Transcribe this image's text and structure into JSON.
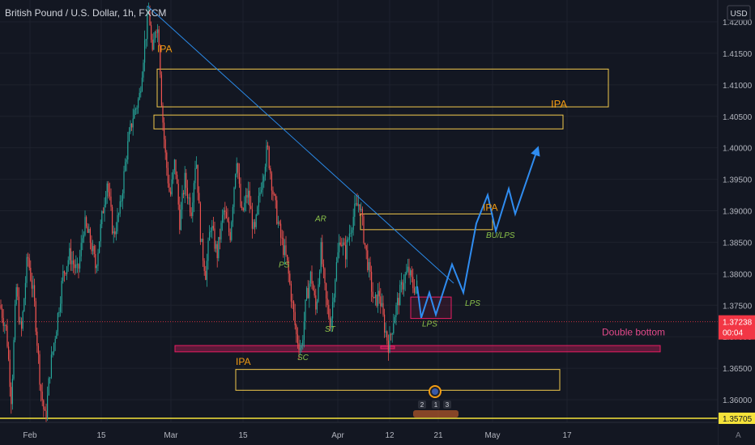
{
  "chart_data": {
    "type": "candlestick",
    "title": "British Pound / U.S. Dollar, 1h, FXCM",
    "currency": "USD",
    "colors": {
      "background": "#131722",
      "grid": "#1e222d",
      "up": "#26a69a",
      "down": "#ef5350",
      "trendline": "#2a89e6",
      "projection": "#2f8cf0",
      "zone_yellow": "#f2c94c",
      "zone_pink": "#e91e63",
      "annotation_green": "#8bc34a",
      "annotation_orange": "#f39c12",
      "double_bottom": "#e34a8a",
      "price_tag": "#f23645",
      "price_tag_yellow": "#f6e33a"
    },
    "y_ticks": [
      "1.42000",
      "1.41500",
      "1.41000",
      "1.40500",
      "1.40000",
      "1.39500",
      "1.39000",
      "1.38500",
      "1.38000",
      "1.37500",
      "1.37000",
      "1.36500",
      "1.36000"
    ],
    "ylim": [
      1.3562,
      1.424
    ],
    "x_ticks": [
      "Feb",
      "15",
      "Mar",
      "15",
      "Apr",
      "12",
      "21",
      "May",
      "17"
    ],
    "current_price": "1.37238",
    "countdown": "00:04",
    "bottom_price": "1.35705",
    "price_path": [
      [
        "Feb",
        1.375
      ],
      [
        8,
        1.371
      ],
      [
        14,
        1.36
      ],
      [
        20,
        1.378
      ],
      [
        26,
        1.37
      ],
      [
        34,
        1.383
      ],
      [
        42,
        1.376
      ],
      [
        50,
        1.362
      ],
      [
        56,
        1.3566
      ],
      [
        62,
        1.365
      ],
      [
        70,
        1.372
      ],
      [
        78,
        1.38
      ],
      [
        86,
        1.383
      ],
      [
        96,
        1.38
      ],
      [
        104,
        1.388
      ],
      [
        112,
        1.385
      ],
      [
        118,
        1.381
      ],
      [
        124,
        1.387
      ],
      [
        132,
        1.395
      ],
      [
        140,
        1.386
      ],
      [
        148,
        1.39
      ],
      [
        156,
        1.399
      ],
      [
        164,
        1.405
      ],
      [
        172,
        1.408
      ],
      [
        178,
        1.416
      ],
      [
        184,
        1.422
      ],
      [
        188,
        1.414
      ],
      [
        192,
        1.42
      ],
      [
        196,
        1.418
      ],
      [
        200,
        1.406
      ],
      [
        204,
        1.399
      ],
      [
        210,
        1.392
      ],
      [
        216,
        1.398
      ],
      [
        222,
        1.388
      ],
      [
        228,
        1.395
      ],
      [
        236,
        1.39
      ],
      [
        242,
        1.399
      ],
      [
        248,
        1.385
      ],
      [
        254,
        1.38
      ],
      [
        260,
        1.388
      ],
      [
        268,
        1.383
      ],
      [
        276,
        1.39
      ],
      [
        284,
        1.386
      ],
      [
        292,
        1.399
      ],
      [
        298,
        1.389
      ],
      [
        306,
        1.393
      ],
      [
        314,
        1.386
      ],
      [
        322,
        1.394
      ],
      [
        330,
        1.4
      ],
      [
        338,
        1.392
      ],
      [
        346,
        1.386
      ],
      [
        354,
        1.382
      ],
      [
        360,
        1.376
      ],
      [
        366,
        1.37
      ],
      [
        372,
        1.368
      ],
      [
        378,
        1.376
      ],
      [
        384,
        1.38
      ],
      [
        390,
        1.374
      ],
      [
        396,
        1.384
      ],
      [
        402,
        1.376
      ],
      [
        408,
        1.372
      ],
      [
        414,
        1.38
      ],
      [
        420,
        1.386
      ],
      [
        426,
        1.383
      ],
      [
        432,
        1.387
      ],
      [
        438,
        1.39
      ],
      [
        444,
        1.3915
      ],
      [
        450,
        1.385
      ],
      [
        456,
        1.38
      ],
      [
        462,
        1.375
      ],
      [
        468,
        1.377
      ],
      [
        474,
        1.372
      ],
      [
        480,
        1.3685
      ],
      [
        486,
        1.373
      ],
      [
        492,
        1.376
      ],
      [
        498,
        1.379
      ],
      [
        504,
        1.3805
      ],
      [
        510,
        1.378
      ],
      [
        515,
        1.378
      ]
    ],
    "trendline": {
      "from": [
        182,
        1.4225
      ],
      "to": [
        560,
        1.3785
      ]
    },
    "projection_path": [
      [
        515,
        1.378
      ],
      [
        520,
        1.373
      ],
      [
        530,
        1.377
      ],
      [
        538,
        1.3735
      ],
      [
        548,
        1.3775
      ],
      [
        558,
        1.3815
      ],
      [
        572,
        1.377
      ],
      [
        588,
        1.388
      ],
      [
        602,
        1.3925
      ],
      [
        612,
        1.3868
      ],
      [
        628,
        1.3935
      ],
      [
        636,
        1.3895
      ],
      [
        664,
        1.4
      ]
    ],
    "zones": [
      {
        "id": "zone-top-1",
        "color": "yellow",
        "x": [
          194,
          751
        ],
        "y": [
          1.4065,
          1.4125
        ]
      },
      {
        "id": "zone-top-2",
        "color": "yellow",
        "x": [
          190,
          695
        ],
        "y": [
          1.403,
          1.4052
        ]
      },
      {
        "id": "zone-mid",
        "color": "yellow",
        "x": [
          445,
          608
        ],
        "y": [
          1.387,
          1.3895
        ]
      },
      {
        "id": "zone-low",
        "color": "yellow",
        "x": [
          291,
          691
        ],
        "y": [
          1.3615,
          1.3648
        ]
      },
      {
        "id": "zone-bu",
        "color": "pink",
        "x": [
          507,
          557
        ],
        "y": [
          1.3729,
          1.3763
        ]
      },
      {
        "id": "zone-dbl",
        "color": "pinkfill",
        "x": [
          216,
          815
        ],
        "y": [
          1.3676,
          1.3686
        ]
      },
      {
        "id": "zone-sm",
        "color": "pinkfill",
        "x": [
          470,
          487
        ],
        "y": [
          1.3681,
          1.3685
        ]
      }
    ],
    "labels": [
      {
        "name": "label-ipa-top",
        "text": "IPA",
        "x": 194,
        "y": 1.4152,
        "color": "orange",
        "size": 12
      },
      {
        "name": "label-ipa-right",
        "text": "IPA",
        "x": 680,
        "y": 1.4064,
        "color": "orange",
        "size": 13
      },
      {
        "name": "label-ipa-mid",
        "text": "IPA",
        "x": 596,
        "y": 1.39,
        "color": "orange",
        "size": 12
      },
      {
        "name": "label-ipa-low",
        "text": "IPA",
        "x": 291,
        "y": 1.3655,
        "color": "orange",
        "size": 12
      },
      {
        "name": "label-ar",
        "text": "AR",
        "x": 389,
        "y": 1.3883,
        "color": "green",
        "size": 10
      },
      {
        "name": "label-ps",
        "text": "PS",
        "x": 344,
        "y": 1.381,
        "color": "green",
        "size": 10
      },
      {
        "name": "label-st",
        "text": "ST",
        "x": 401,
        "y": 1.3708,
        "color": "green",
        "size": 10
      },
      {
        "name": "label-sc",
        "text": "SC",
        "x": 367,
        "y": 1.3663,
        "color": "green",
        "size": 10
      },
      {
        "name": "label-lps-1",
        "text": "LPS",
        "x": 521,
        "y": 1.3716,
        "color": "green",
        "size": 10
      },
      {
        "name": "label-lps-2",
        "text": "LPS",
        "x": 574,
        "y": 1.3749,
        "color": "green",
        "size": 10
      },
      {
        "name": "label-bulps",
        "text": "BU/LPS",
        "x": 600,
        "y": 1.3857,
        "color": "green",
        "size": 10
      },
      {
        "name": "label-double-bottom",
        "text": "Double bottom",
        "x": 743,
        "y": 1.3702,
        "color": "pink",
        "size": 12
      }
    ],
    "event_markers": [
      "2",
      "1",
      "3"
    ]
  }
}
